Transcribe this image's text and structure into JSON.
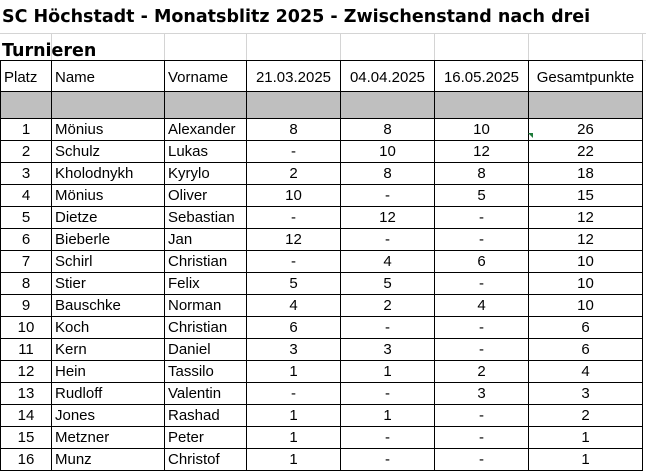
{
  "title": "SC Höchstadt - Monatsblitz 2025 - Zwischenstand nach drei Turnieren",
  "columns": [
    "Platz",
    "Name",
    "Vorname",
    "21.03.2025",
    "04.04.2025",
    "16.05.2025",
    "Gesamtpunkte"
  ],
  "rows": [
    [
      "1",
      "Mönius",
      "Alexander",
      "8",
      "8",
      "10",
      "26"
    ],
    [
      "2",
      "Schulz",
      "Lukas",
      "-",
      "10",
      "12",
      "22"
    ],
    [
      "3",
      "Kholodnykh",
      "Kyrylo",
      "2",
      "8",
      "8",
      "18"
    ],
    [
      "4",
      "Mönius",
      "Oliver",
      "10",
      "-",
      "5",
      "15"
    ],
    [
      "5",
      "Dietze",
      "Sebastian",
      "-",
      "12",
      "-",
      "12"
    ],
    [
      "6",
      "Bieberle",
      "Jan",
      "12",
      "-",
      "-",
      "12"
    ],
    [
      "7",
      "Schirl",
      "Christian",
      "-",
      "4",
      "6",
      "10"
    ],
    [
      "8",
      "Stier",
      "Felix",
      "5",
      "5",
      "-",
      "10"
    ],
    [
      "9",
      "Bauschke",
      "Norman",
      "4",
      "2",
      "4",
      "10"
    ],
    [
      "10",
      "Koch",
      "Christian",
      "6",
      "-",
      "-",
      "6"
    ],
    [
      "11",
      "Kern",
      "Daniel",
      "3",
      "3",
      "-",
      "6"
    ],
    [
      "12",
      "Hein",
      "Tassilo",
      "1",
      "1",
      "2",
      "4"
    ],
    [
      "13",
      "Rudloff",
      "Valentin",
      "-",
      "-",
      "3",
      "3"
    ],
    [
      "14",
      "Jones",
      "Rashad",
      "1",
      "1",
      "-",
      "2"
    ],
    [
      "15",
      "Metzner",
      "Peter",
      "1",
      "-",
      "-",
      "1"
    ],
    [
      "16",
      "Munz",
      "Christof",
      "1",
      "-",
      "-",
      "1"
    ]
  ]
}
